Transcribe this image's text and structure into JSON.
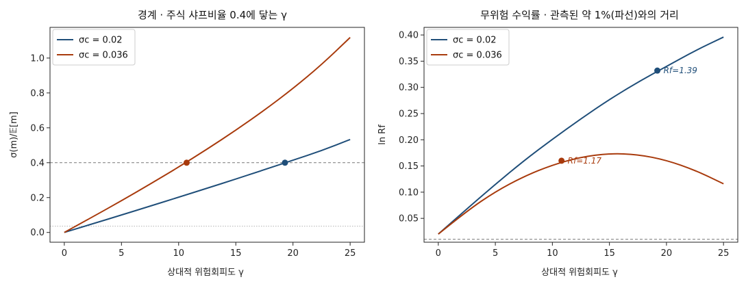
{
  "colors": {
    "blue": "#1f4e79",
    "orange": "#a83a0c"
  },
  "chart_data": [
    {
      "type": "line",
      "title": "경계 · 주식 샤프비율 0.4에 닿는 γ",
      "xlabel": "상대적 위험회피도 γ",
      "ylabel": "σ(m)/𝔼[m]",
      "xlim": [
        -1.25,
        26.25
      ],
      "ylim": [
        -0.056,
        1.176
      ],
      "xticks": [
        0,
        5,
        10,
        15,
        20,
        25
      ],
      "xtick_labels": [
        "0",
        "5",
        "10",
        "15",
        "20",
        "25"
      ],
      "yticks": [
        0.0,
        0.2,
        0.4,
        0.6,
        0.8,
        1.0
      ],
      "ytick_labels": [
        "0.0",
        "0.2",
        "0.4",
        "0.6",
        "0.8",
        "1.0"
      ],
      "legend_position": "top-left",
      "hlines": [
        {
          "y": 0.4,
          "style": "dashed"
        },
        {
          "y": 0.036,
          "style": "dotted"
        }
      ],
      "series": [
        {
          "name": "σc = 0.02",
          "color": "#1f4e79",
          "x": [
            0,
            2.5,
            5,
            7.5,
            10,
            12.5,
            15,
            17.5,
            20,
            22.5,
            25
          ],
          "y": [
            0.0,
            0.05,
            0.1,
            0.151,
            0.202,
            0.254,
            0.306,
            0.36,
            0.414,
            0.469,
            0.533
          ]
        },
        {
          "name": "σc = 0.036",
          "color": "#a83a0c",
          "x": [
            0,
            2.5,
            5,
            7.5,
            10,
            12.5,
            15,
            17.5,
            20,
            22.5,
            25
          ],
          "y": [
            0.0,
            0.09,
            0.182,
            0.277,
            0.375,
            0.478,
            0.586,
            0.701,
            0.825,
            0.962,
            1.118
          ]
        }
      ],
      "markers": [
        {
          "x": 10.7,
          "y": 0.4,
          "color": "#a83a0c"
        },
        {
          "x": 19.3,
          "y": 0.4,
          "color": "#1f4e79"
        }
      ]
    },
    {
      "type": "line",
      "title": "무위험 수익률 · 관측된 약 1%(파선)와의 거리",
      "xlabel": "상대적 위험회피도 γ",
      "ylabel": "ln Rf",
      "xlim": [
        -1.25,
        26.25
      ],
      "ylim": [
        0.0045,
        0.4145
      ],
      "xticks": [
        0,
        5,
        10,
        15,
        20,
        25
      ],
      "xtick_labels": [
        "0",
        "5",
        "10",
        "15",
        "20",
        "25"
      ],
      "yticks": [
        0.05,
        0.1,
        0.15,
        0.2,
        0.25,
        0.3,
        0.35,
        0.4
      ],
      "ytick_labels": [
        "0.05",
        "0.10",
        "0.15",
        "0.20",
        "0.25",
        "0.30",
        "0.35",
        "0.40"
      ],
      "legend_position": "top-left",
      "hlines": [
        {
          "y": 0.01,
          "style": "dashed"
        }
      ],
      "series": [
        {
          "name": "σc = 0.02",
          "color": "#1f4e79",
          "x": [
            0,
            2.5,
            5,
            7.5,
            10,
            12.5,
            15,
            17.5,
            20,
            22.5,
            25
          ],
          "y": [
            0.02,
            0.068,
            0.115,
            0.16,
            0.201,
            0.24,
            0.277,
            0.31,
            0.34,
            0.37,
            0.396
          ]
        },
        {
          "name": "σc = 0.036",
          "color": "#a83a0c",
          "x": [
            0,
            2.5,
            5,
            7.5,
            10,
            12.5,
            15,
            17.5,
            20,
            22.5,
            25
          ],
          "y": [
            0.02,
            0.064,
            0.101,
            0.13,
            0.152,
            0.167,
            0.174,
            0.172,
            0.161,
            0.142,
            0.116
          ]
        }
      ],
      "markers": [
        {
          "x": 10.8,
          "y": 0.16,
          "color": "#a83a0c",
          "label": "Rf=1.17"
        },
        {
          "x": 19.2,
          "y": 0.332,
          "color": "#1f4e79",
          "label": "Rf=1.39"
        }
      ]
    }
  ]
}
